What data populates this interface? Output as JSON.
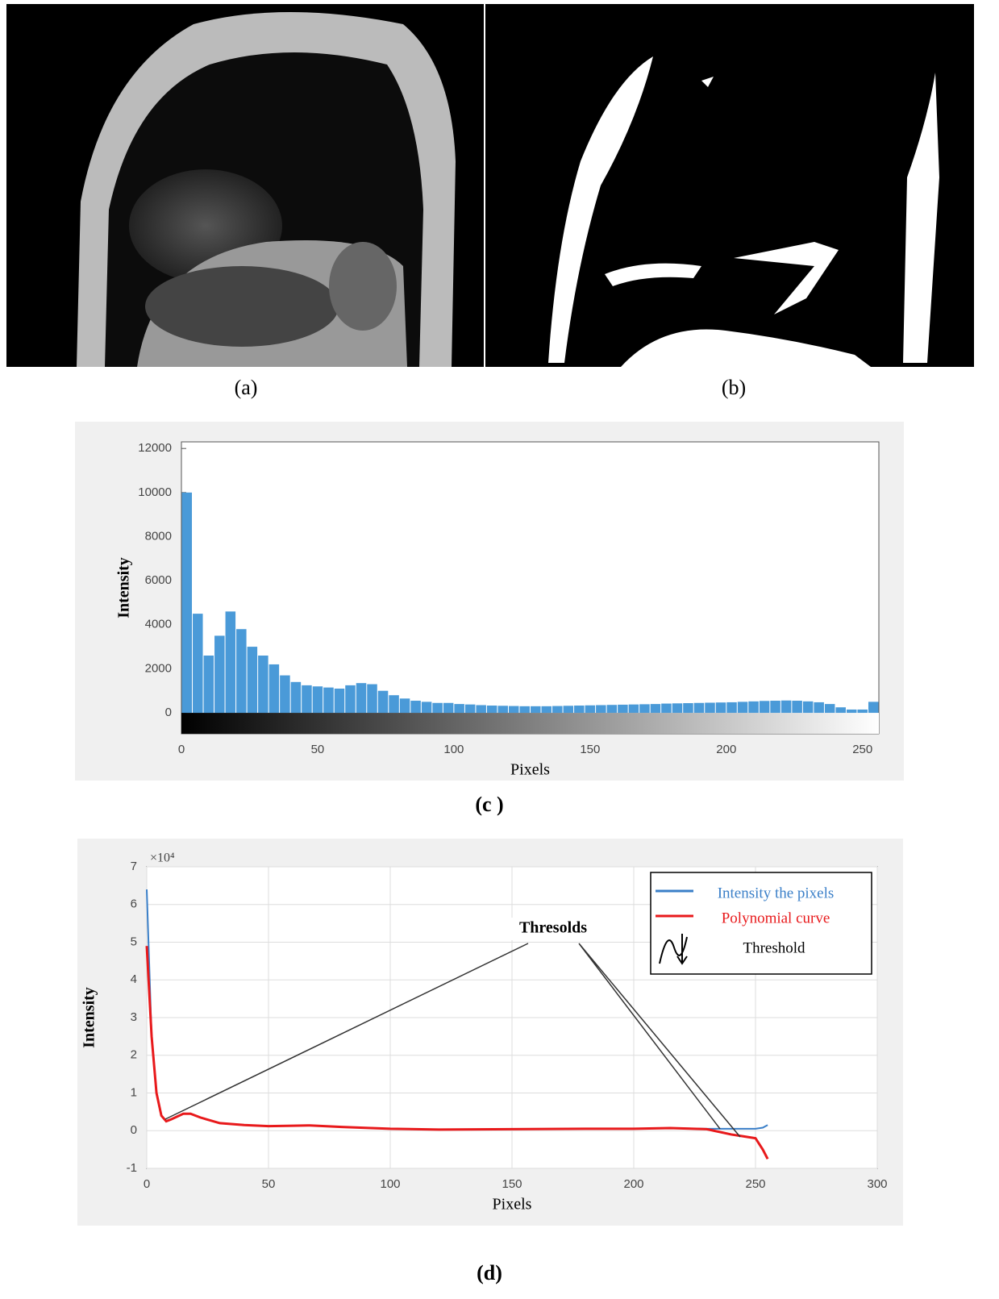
{
  "panels": [
    {
      "label": "(a)"
    },
    {
      "label": "(b)"
    }
  ],
  "chart_data": [
    {
      "type": "histogram",
      "caption": "(c )",
      "xlabel": "Pixels",
      "ylabel": "Intensity",
      "bins": [
        0,
        4,
        8,
        12,
        16,
        20,
        24,
        28,
        32,
        36,
        40,
        44,
        48,
        52,
        56,
        60,
        64,
        68,
        72,
        76,
        80,
        84,
        88,
        92,
        96,
        100,
        104,
        108,
        112,
        116,
        120,
        124,
        128,
        132,
        136,
        140,
        144,
        148,
        152,
        156,
        160,
        164,
        168,
        172,
        176,
        180,
        184,
        188,
        192,
        196,
        200,
        204,
        208,
        212,
        216,
        220,
        224,
        228,
        232,
        236,
        240,
        244,
        248,
        252,
        256
      ],
      "counts": [
        10000,
        4500,
        2600,
        3500,
        4600,
        3800,
        3000,
        2600,
        2200,
        1700,
        1400,
        1250,
        1200,
        1150,
        1100,
        1250,
        1350,
        1300,
        1000,
        800,
        650,
        550,
        500,
        450,
        450,
        400,
        380,
        350,
        330,
        320,
        310,
        300,
        300,
        300,
        310,
        320,
        330,
        340,
        350,
        360,
        370,
        380,
        390,
        400,
        420,
        430,
        440,
        450,
        460,
        470,
        480,
        500,
        520,
        540,
        550,
        560,
        550,
        520,
        480,
        400,
        250,
        150,
        150,
        500
      ],
      "color": "#4a9ad8",
      "xlim": [
        0,
        256
      ],
      "xticks": [
        0,
        50,
        100,
        150,
        200,
        250
      ],
      "ylim": [
        -950,
        12300
      ],
      "yticks": [
        0,
        2000,
        4000,
        6000,
        8000,
        10000,
        12000
      ],
      "grid": false
    },
    {
      "type": "line",
      "caption": "(d)",
      "xlabel": "Pixels",
      "ylabel": "Intensity",
      "y_exponent_label": "×10⁴",
      "x": [
        0,
        2,
        4,
        6,
        8,
        10,
        15,
        18,
        22,
        30,
        40,
        50,
        60,
        67,
        80,
        100,
        120,
        150,
        180,
        200,
        215,
        230,
        240,
        245,
        250,
        253,
        255
      ],
      "series": [
        {
          "name": "Intensity the pixels",
          "color": "#3a7fc8",
          "values": [
            6.4,
            2.5,
            1.0,
            0.4,
            0.25,
            0.3,
            0.45,
            0.45,
            0.35,
            0.2,
            0.15,
            0.12,
            0.13,
            0.14,
            0.1,
            0.05,
            0.03,
            0.04,
            0.05,
            0.05,
            0.07,
            0.05,
            0.05,
            0.05,
            0.05,
            0.08,
            0.15
          ]
        },
        {
          "name": "Polynomial curve",
          "color": "#e8191b",
          "values": [
            4.9,
            2.5,
            1.0,
            0.4,
            0.25,
            0.3,
            0.45,
            0.45,
            0.35,
            0.2,
            0.15,
            0.12,
            0.13,
            0.14,
            0.1,
            0.05,
            0.03,
            0.04,
            0.05,
            0.05,
            0.07,
            0.04,
            -0.1,
            -0.15,
            -0.2,
            -0.5,
            -0.75
          ]
        }
      ],
      "legend_extra": "Threshold",
      "annotation": "Thresolds",
      "xlim": [
        0,
        300
      ],
      "xticks": [
        0,
        50,
        100,
        150,
        200,
        250,
        300
      ],
      "ylim": [
        -1,
        7
      ],
      "yticks": [
        -1,
        0,
        1,
        2,
        3,
        4,
        5,
        6,
        7
      ],
      "grid": true
    }
  ]
}
